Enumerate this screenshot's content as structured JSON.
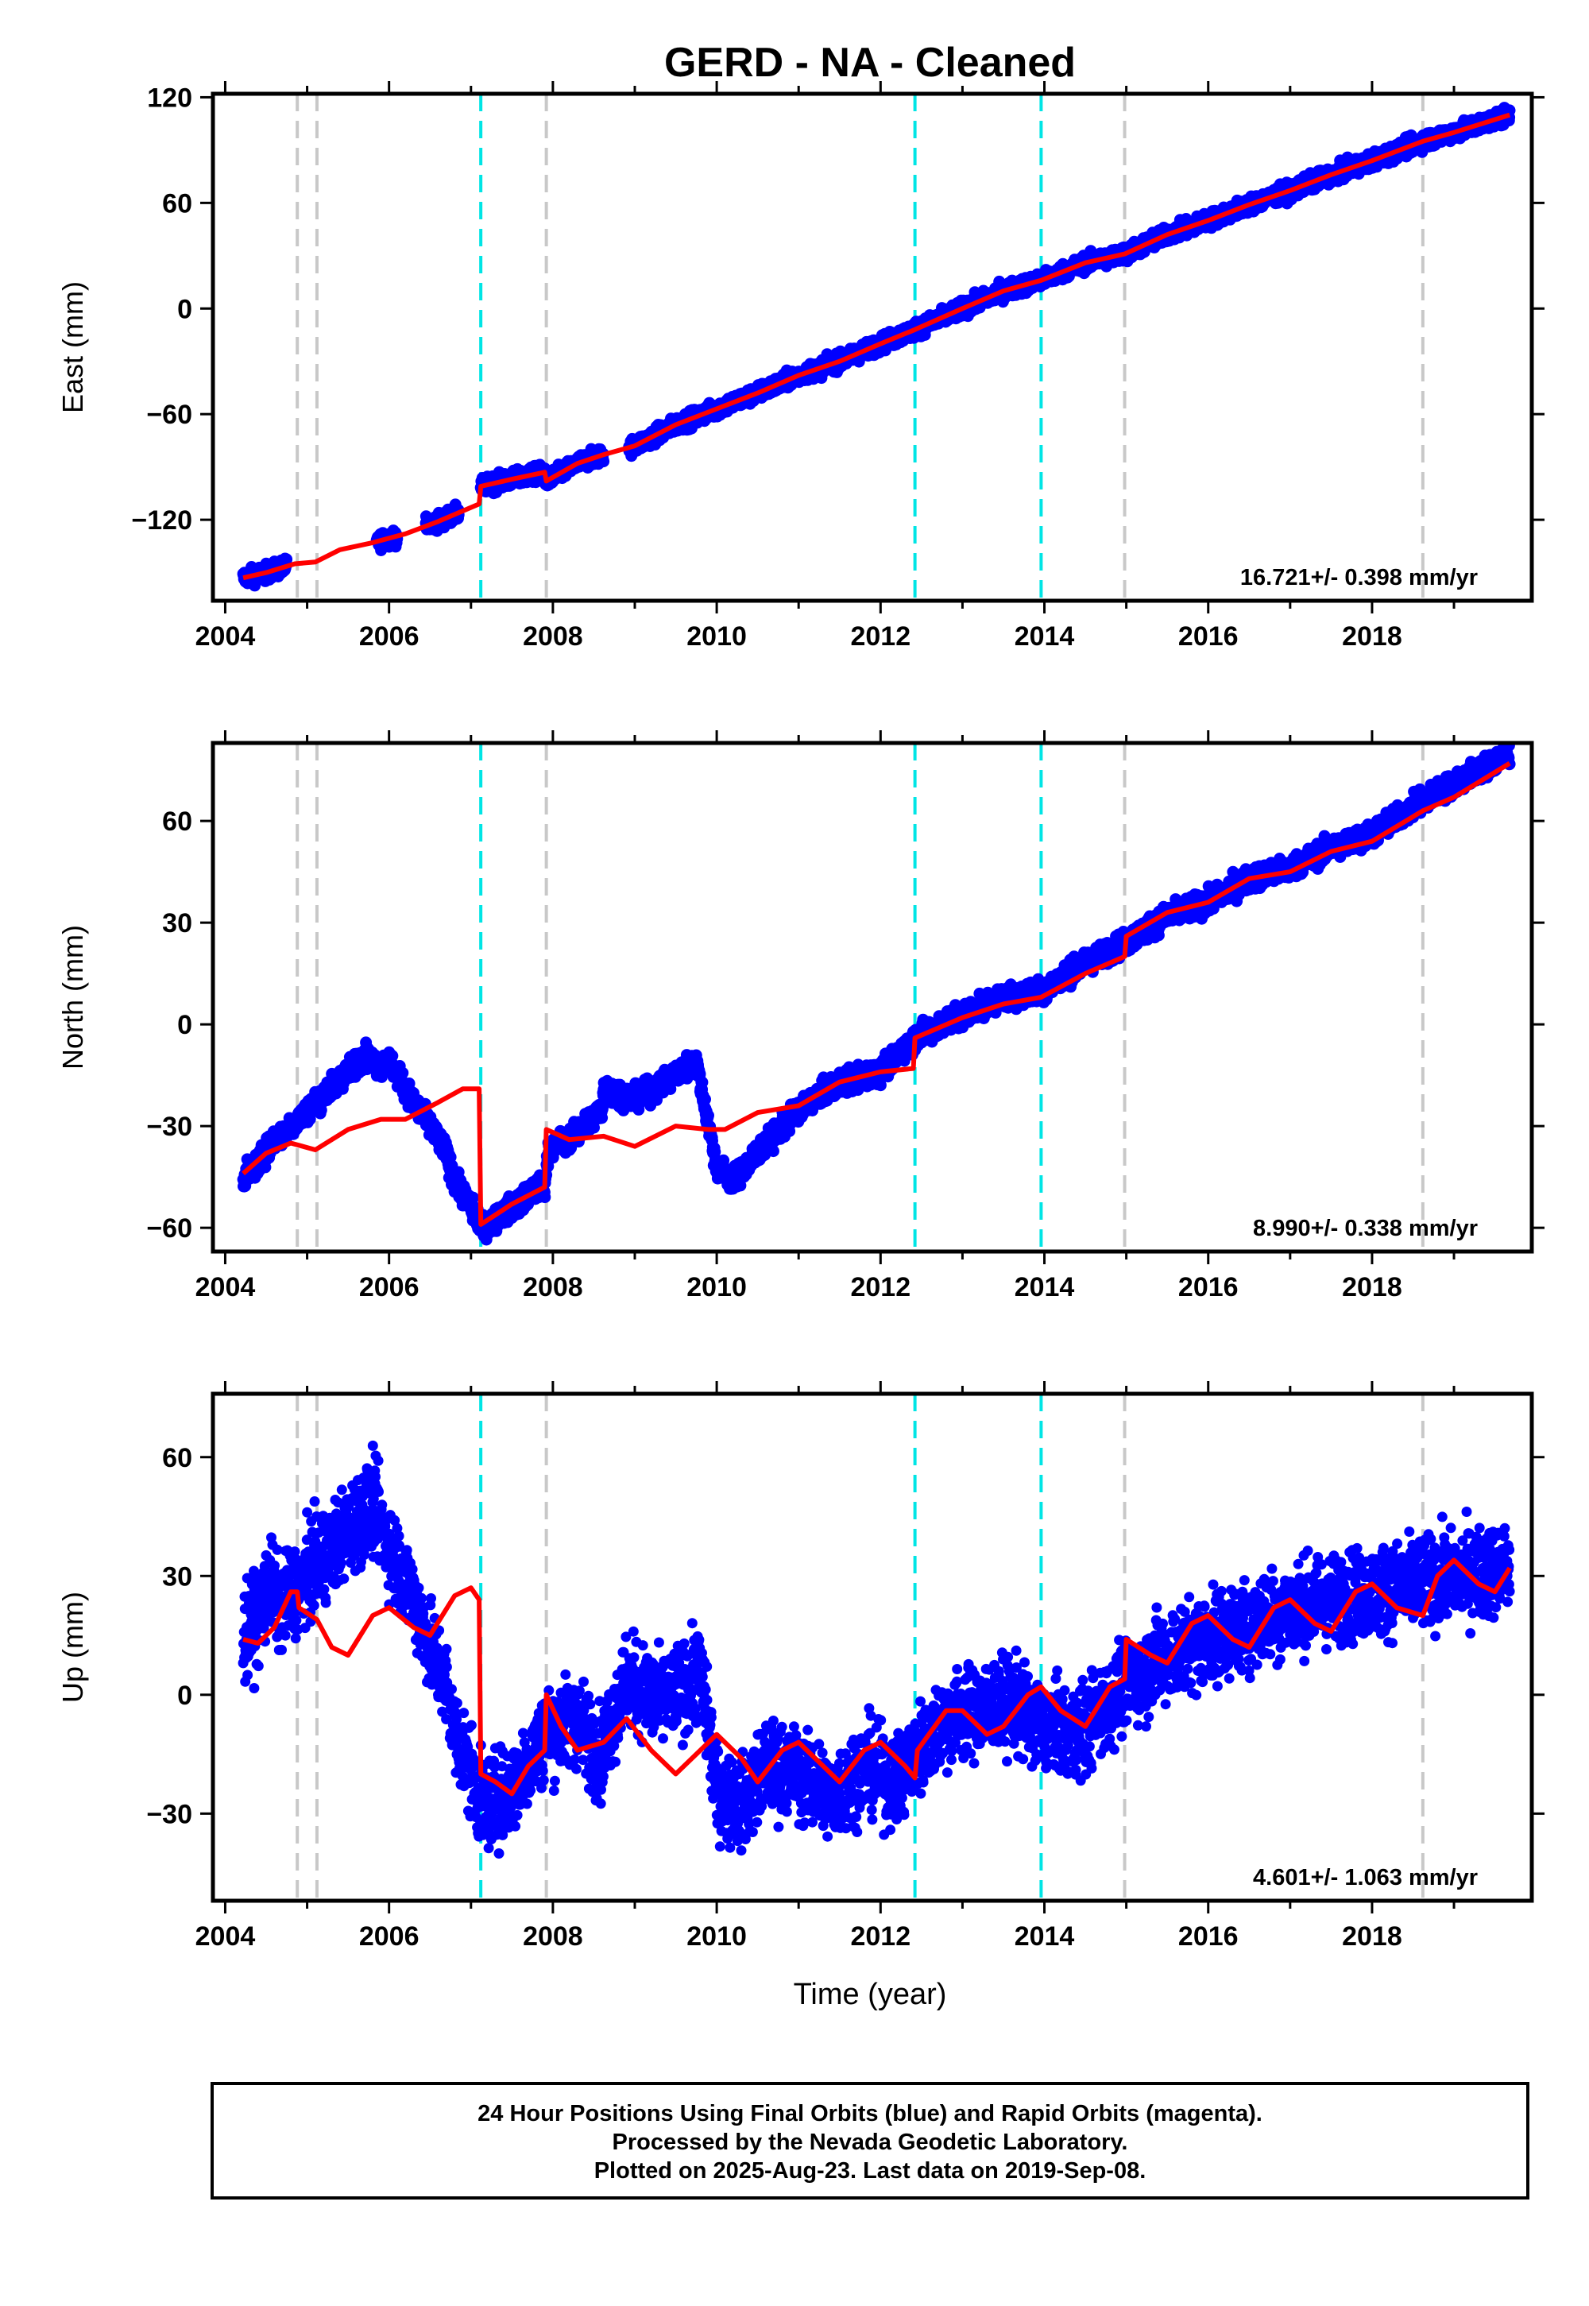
{
  "title": "GERD  - NA - Cleaned",
  "xlabel": "Time (year)",
  "footer": {
    "line1": "24 Hour Positions Using Final Orbits (blue) and Rapid Orbits (magenta).",
    "line2": "Processed by the Nevada Geodetic Laboratory.",
    "line3": "Plotted on 2025-Aug-23. Last data on 2019-Sep-08."
  },
  "colors": {
    "data": "#0000ff",
    "model": "#ff0000",
    "equipment_change": "#c8c8c8",
    "earthquake": "#00e5e5"
  },
  "chart_data": [
    {
      "type": "scatter",
      "panel": "east",
      "ylabel": "East (mm)",
      "xlim": [
        2003.85,
        2019.95
      ],
      "ylim": [
        -166,
        122
      ],
      "yticks": [
        120,
        60,
        0,
        -60,
        -120
      ],
      "xticks": [
        2004,
        2006,
        2008,
        2010,
        2012,
        2014,
        2016,
        2018
      ],
      "rate_label": "16.721+/- 0.398 mm/yr",
      "gray_lines": [
        2004.88,
        2005.12,
        2007.92,
        2014.98,
        2018.62
      ],
      "cyan_lines": [
        2007.12,
        2012.42,
        2013.96
      ],
      "data_spans": [
        [
          2004.22,
          2004.75
        ],
        [
          2005.85,
          2006.1
        ],
        [
          2006.45,
          2006.85
        ],
        [
          2007.12,
          2008.62
        ],
        [
          2008.93,
          2019.68
        ]
      ],
      "model_points": [
        [
          2004.22,
          -153
        ],
        [
          2004.5,
          -150
        ],
        [
          2004.85,
          -145
        ],
        [
          2005.1,
          -144
        ],
        [
          2005.4,
          -137
        ],
        [
          2005.8,
          -133
        ],
        [
          2006.2,
          -128
        ],
        [
          2006.6,
          -121
        ],
        [
          2007.0,
          -113
        ],
        [
          2007.1,
          -111
        ],
        [
          2007.12,
          -101
        ],
        [
          2007.5,
          -97
        ],
        [
          2007.9,
          -93
        ],
        [
          2007.92,
          -98
        ],
        [
          2008.3,
          -88
        ],
        [
          2008.62,
          -83
        ],
        [
          2009.0,
          -78
        ],
        [
          2009.5,
          -66
        ],
        [
          2010.0,
          -57
        ],
        [
          2010.5,
          -48
        ],
        [
          2011.0,
          -38
        ],
        [
          2011.5,
          -30
        ],
        [
          2012.0,
          -20
        ],
        [
          2012.42,
          -12
        ],
        [
          2013.0,
          0
        ],
        [
          2013.5,
          10
        ],
        [
          2013.96,
          16
        ],
        [
          2014.5,
          26
        ],
        [
          2014.98,
          31
        ],
        [
          2015.5,
          42
        ],
        [
          2016.0,
          50
        ],
        [
          2016.5,
          59
        ],
        [
          2017.0,
          67
        ],
        [
          2017.5,
          76
        ],
        [
          2018.0,
          84
        ],
        [
          2018.62,
          95
        ],
        [
          2019.0,
          100
        ],
        [
          2019.68,
          110
        ]
      ]
    },
    {
      "type": "scatter",
      "panel": "north",
      "ylabel": "North (mm)",
      "xlim": [
        2003.85,
        2019.95
      ],
      "ylim": [
        -67,
        83
      ],
      "yticks": [
        60,
        30,
        0,
        -30,
        -60
      ],
      "xticks": [
        2004,
        2006,
        2008,
        2010,
        2012,
        2014,
        2016,
        2018
      ],
      "rate_label": "8.990+/- 0.338 mm/yr",
      "gray_lines": [
        2004.88,
        2005.12,
        2007.92,
        2014.98,
        2018.62
      ],
      "cyan_lines": [
        2007.12,
        2012.42,
        2013.96
      ],
      "data_spans": [],
      "data_points": [
        [
          2004.22,
          -45
        ],
        [
          2004.4,
          -41
        ],
        [
          2004.6,
          -34
        ],
        [
          2004.72,
          -32
        ],
        [
          2005.7,
          -9
        ],
        [
          2005.85,
          -12
        ],
        [
          2006.0,
          -11
        ],
        [
          2006.3,
          -23
        ],
        [
          2006.5,
          -30
        ],
        [
          2006.7,
          -38
        ],
        [
          2006.78,
          -45
        ],
        [
          2007.15,
          -60
        ],
        [
          2007.5,
          -54
        ],
        [
          2007.9,
          -47
        ],
        [
          2007.95,
          -37
        ],
        [
          2008.3,
          -32
        ],
        [
          2008.6,
          -25
        ],
        [
          2008.62,
          -19
        ],
        [
          2009.0,
          -22
        ],
        [
          2009.3,
          -18
        ],
        [
          2009.6,
          -13
        ],
        [
          2009.75,
          -11
        ],
        [
          2010.0,
          -42
        ],
        [
          2010.2,
          -46
        ],
        [
          2010.5,
          -38
        ],
        [
          2011.0,
          -25
        ],
        [
          2011.5,
          -17
        ],
        [
          2012.0,
          -14
        ],
        [
          2012.42,
          -4
        ],
        [
          2013.0,
          3
        ],
        [
          2013.5,
          8
        ],
        [
          2013.96,
          10
        ],
        [
          2014.5,
          18
        ],
        [
          2014.98,
          24
        ],
        [
          2015.5,
          32
        ],
        [
          2016.0,
          36
        ],
        [
          2016.5,
          43
        ],
        [
          2017.0,
          46
        ],
        [
          2017.5,
          52
        ],
        [
          2018.0,
          56
        ],
        [
          2018.62,
          66
        ],
        [
          2019.0,
          71
        ],
        [
          2019.68,
          80
        ]
      ],
      "model_points": [
        [
          2004.22,
          -44
        ],
        [
          2004.5,
          -38
        ],
        [
          2004.8,
          -35
        ],
        [
          2005.1,
          -37
        ],
        [
          2005.5,
          -31
        ],
        [
          2005.9,
          -28
        ],
        [
          2006.2,
          -28
        ],
        [
          2006.6,
          -23
        ],
        [
          2006.9,
          -19
        ],
        [
          2007.1,
          -19
        ],
        [
          2007.12,
          -59
        ],
        [
          2007.5,
          -53
        ],
        [
          2007.9,
          -48
        ],
        [
          2007.92,
          -31
        ],
        [
          2008.2,
          -34
        ],
        [
          2008.62,
          -33
        ],
        [
          2009.0,
          -36
        ],
        [
          2009.5,
          -30
        ],
        [
          2009.9,
          -31
        ],
        [
          2010.1,
          -31
        ],
        [
          2010.5,
          -26
        ],
        [
          2011.0,
          -24
        ],
        [
          2011.5,
          -17
        ],
        [
          2012.0,
          -14
        ],
        [
          2012.4,
          -13
        ],
        [
          2012.42,
          -4
        ],
        [
          2013.0,
          2
        ],
        [
          2013.5,
          6
        ],
        [
          2013.96,
          8
        ],
        [
          2014.5,
          15
        ],
        [
          2014.98,
          20
        ],
        [
          2015.0,
          26
        ],
        [
          2015.5,
          33
        ],
        [
          2016.0,
          36
        ],
        [
          2016.5,
          43
        ],
        [
          2017.0,
          45
        ],
        [
          2017.5,
          51
        ],
        [
          2018.0,
          54
        ],
        [
          2018.62,
          63
        ],
        [
          2019.0,
          67
        ],
        [
          2019.68,
          77
        ]
      ]
    },
    {
      "type": "scatter",
      "panel": "up",
      "ylabel": "Up (mm)",
      "xlim": [
        2003.85,
        2019.95
      ],
      "ylim": [
        -52,
        76
      ],
      "yticks": [
        60,
        30,
        0,
        -30
      ],
      "xticks": [
        2004,
        2006,
        2008,
        2010,
        2012,
        2014,
        2016,
        2018
      ],
      "rate_label": "4.601+/- 1.063 mm/yr",
      "gray_lines": [
        2004.88,
        2005.12,
        2007.92,
        2014.98,
        2018.62
      ],
      "cyan_lines": [
        2007.12,
        2012.42,
        2013.96
      ],
      "data_spans": [],
      "data_points": [
        [
          2004.22,
          14
        ],
        [
          2004.4,
          20
        ],
        [
          2004.55,
          28
        ],
        [
          2004.65,
          22
        ],
        [
          2005.6,
          44
        ],
        [
          2005.8,
          48
        ],
        [
          2005.95,
          40
        ],
        [
          2006.3,
          24
        ],
        [
          2006.5,
          12
        ],
        [
          2006.7,
          2
        ],
        [
          2006.78,
          -8
        ],
        [
          2007.15,
          -28
        ],
        [
          2007.5,
          -24
        ],
        [
          2007.9,
          -10
        ],
        [
          2008.3,
          -6
        ],
        [
          2008.6,
          -16
        ],
        [
          2008.62,
          -12
        ],
        [
          2008.9,
          4
        ],
        [
          2009.3,
          -2
        ],
        [
          2009.6,
          2
        ],
        [
          2009.8,
          6
        ],
        [
          2010.0,
          -24
        ],
        [
          2010.3,
          -28
        ],
        [
          2010.6,
          -18
        ],
        [
          2011.0,
          -20
        ],
        [
          2011.4,
          -26
        ],
        [
          2011.8,
          -18
        ],
        [
          2012.2,
          -22
        ],
        [
          2012.42,
          -15
        ],
        [
          2012.8,
          -6
        ],
        [
          2013.2,
          -4
        ],
        [
          2013.6,
          -2
        ],
        [
          2013.96,
          -8
        ],
        [
          2014.4,
          -10
        ],
        [
          2014.98,
          2
        ],
        [
          2015.5,
          10
        ],
        [
          2016.0,
          14
        ],
        [
          2016.5,
          18
        ],
        [
          2017.0,
          22
        ],
        [
          2017.5,
          24
        ],
        [
          2018.0,
          26
        ],
        [
          2018.62,
          28
        ],
        [
          2019.0,
          30
        ],
        [
          2019.68,
          32
        ]
      ],
      "model_points": [
        [
          2004.22,
          14
        ],
        [
          2004.4,
          13
        ],
        [
          2004.6,
          17
        ],
        [
          2004.8,
          26
        ],
        [
          2004.88,
          26
        ],
        [
          2004.9,
          22
        ],
        [
          2005.12,
          19
        ],
        [
          2005.3,
          12
        ],
        [
          2005.5,
          10
        ],
        [
          2005.8,
          20
        ],
        [
          2006.0,
          22
        ],
        [
          2006.3,
          17
        ],
        [
          2006.5,
          15
        ],
        [
          2006.8,
          25
        ],
        [
          2007.0,
          27
        ],
        [
          2007.1,
          24
        ],
        [
          2007.12,
          -20
        ],
        [
          2007.3,
          -22
        ],
        [
          2007.5,
          -25
        ],
        [
          2007.7,
          -18
        ],
        [
          2007.9,
          -14
        ],
        [
          2007.92,
          0
        ],
        [
          2008.1,
          -8
        ],
        [
          2008.3,
          -14
        ],
        [
          2008.62,
          -12
        ],
        [
          2008.9,
          -6
        ],
        [
          2009.2,
          -14
        ],
        [
          2009.5,
          -20
        ],
        [
          2009.8,
          -14
        ],
        [
          2010.0,
          -10
        ],
        [
          2010.3,
          -16
        ],
        [
          2010.5,
          -22
        ],
        [
          2010.8,
          -14
        ],
        [
          2011.0,
          -12
        ],
        [
          2011.3,
          -18
        ],
        [
          2011.5,
          -22
        ],
        [
          2011.8,
          -14
        ],
        [
          2012.0,
          -12
        ],
        [
          2012.3,
          -18
        ],
        [
          2012.42,
          -21
        ],
        [
          2012.45,
          -14
        ],
        [
          2012.8,
          -4
        ],
        [
          2013.0,
          -4
        ],
        [
          2013.3,
          -10
        ],
        [
          2013.5,
          -8
        ],
        [
          2013.8,
          0
        ],
        [
          2013.96,
          2
        ],
        [
          2014.2,
          -4
        ],
        [
          2014.5,
          -8
        ],
        [
          2014.8,
          2
        ],
        [
          2014.98,
          4
        ],
        [
          2015.0,
          14
        ],
        [
          2015.3,
          10
        ],
        [
          2015.5,
          8
        ],
        [
          2015.8,
          18
        ],
        [
          2016.0,
          20
        ],
        [
          2016.3,
          14
        ],
        [
          2016.5,
          12
        ],
        [
          2016.8,
          22
        ],
        [
          2017.0,
          24
        ],
        [
          2017.3,
          18
        ],
        [
          2017.5,
          16
        ],
        [
          2017.8,
          26
        ],
        [
          2018.0,
          28
        ],
        [
          2018.3,
          22
        ],
        [
          2018.62,
          20
        ],
        [
          2018.8,
          30
        ],
        [
          2019.0,
          34
        ],
        [
          2019.3,
          28
        ],
        [
          2019.5,
          26
        ],
        [
          2019.68,
          32
        ]
      ]
    }
  ]
}
